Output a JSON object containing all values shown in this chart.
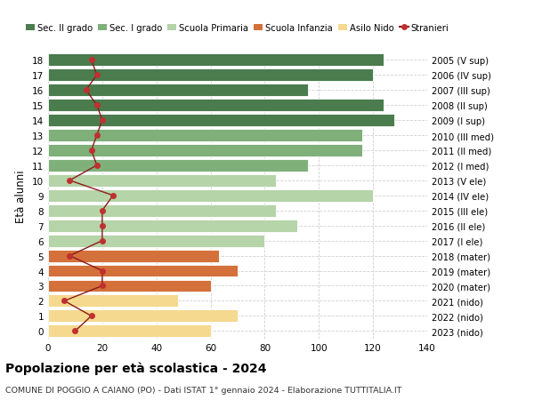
{
  "ages": [
    0,
    1,
    2,
    3,
    4,
    5,
    6,
    7,
    8,
    9,
    10,
    11,
    12,
    13,
    14,
    15,
    16,
    17,
    18
  ],
  "years": [
    "2023 (nido)",
    "2022 (nido)",
    "2021 (nido)",
    "2020 (mater)",
    "2019 (mater)",
    "2018 (mater)",
    "2017 (I ele)",
    "2016 (II ele)",
    "2015 (III ele)",
    "2014 (IV ele)",
    "2013 (V ele)",
    "2012 (I med)",
    "2011 (II med)",
    "2010 (III med)",
    "2009 (I sup)",
    "2008 (II sup)",
    "2007 (III sup)",
    "2006 (IV sup)",
    "2005 (V sup)"
  ],
  "bar_values": [
    60,
    70,
    48,
    60,
    70,
    63,
    80,
    92,
    84,
    120,
    84,
    96,
    116,
    116,
    128,
    124,
    96,
    120,
    124
  ],
  "bar_colors": [
    "#f5d98e",
    "#f5d98e",
    "#f5d98e",
    "#d4703a",
    "#d4703a",
    "#d4703a",
    "#b5d4a8",
    "#b5d4a8",
    "#b5d4a8",
    "#b5d4a8",
    "#b5d4a8",
    "#7fb07a",
    "#7fb07a",
    "#7fb07a",
    "#4a7c4e",
    "#4a7c4e",
    "#4a7c4e",
    "#4a7c4e",
    "#4a7c4e"
  ],
  "stranieri_values": [
    10,
    16,
    6,
    20,
    20,
    8,
    20,
    20,
    20,
    24,
    8,
    18,
    16,
    18,
    20,
    18,
    14,
    18,
    16
  ],
  "legend_labels": [
    "Sec. II grado",
    "Sec. I grado",
    "Scuola Primaria",
    "Scuola Infanzia",
    "Asilo Nido",
    "Stranieri"
  ],
  "legend_colors": [
    "#4a7c4e",
    "#7fb07a",
    "#b5d4a8",
    "#d4703a",
    "#f5d98e",
    "#a02020"
  ],
  "title": "Popolazione per età scolastica - 2024",
  "subtitle": "COMUNE DI POGGIO A CAIANO (PO) - Dati ISTAT 1° gennaio 2024 - Elaborazione TUTTITALIA.IT",
  "ylabel_left": "Età alunni",
  "xlim": [
    0,
    140
  ],
  "xticks": [
    0,
    20,
    40,
    60,
    80,
    100,
    120,
    140
  ],
  "background_color": "#ffffff",
  "grid_color": "#cccccc",
  "stranieri_line_color": "#8b1a1a",
  "stranieri_marker_color": "#c03030"
}
